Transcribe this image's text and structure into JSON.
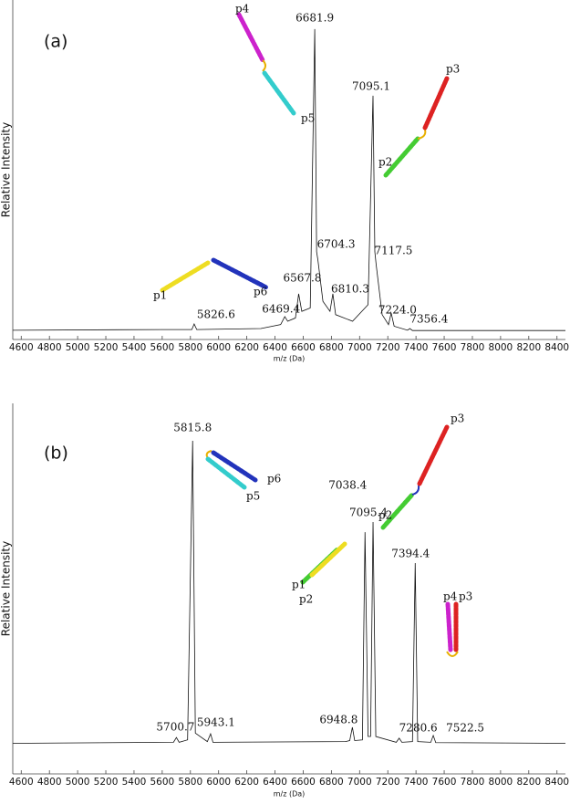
{
  "chart_data": [
    {
      "type": "line",
      "panel_label": "(a)",
      "xlabel": "m/z (Da)",
      "ylabel": "Relative Intensity",
      "color": "#111111",
      "xlim": [
        4540,
        8460
      ],
      "ylim": [
        -2.5,
        100
      ],
      "xticks": [
        4600,
        4800,
        5000,
        5200,
        5400,
        5600,
        5800,
        6000,
        6200,
        6400,
        6600,
        6800,
        7000,
        7200,
        7400,
        7600,
        7800,
        8000,
        8200,
        8400
      ],
      "x": [
        4540,
        5600,
        5810,
        5826.6,
        5845,
        6300,
        6440,
        6469.4,
        6490,
        6545,
        6567.8,
        6590,
        6650,
        6681.9,
        6695,
        6704.3,
        6740,
        6790,
        6810.3,
        6830,
        6950,
        7060,
        7095.1,
        7108,
        7117.5,
        7160,
        7205,
        7224.0,
        7245,
        7340,
        7356.4,
        7375,
        8460
      ],
      "values": [
        0.3,
        0.5,
        0.5,
        2.2,
        0.5,
        0.8,
        2,
        4.4,
        3,
        4,
        11.3,
        6,
        7,
        91.2,
        24,
        21.5,
        9,
        6,
        11.3,
        5,
        3,
        8,
        71.1,
        24,
        20.1,
        5,
        2,
        5.5,
        1.5,
        0.3,
        0.8,
        0.2,
        0.2
      ],
      "peak_labels": [
        null,
        null,
        null,
        "5826.6",
        null,
        null,
        null,
        "6469.4",
        null,
        null,
        "6567.8",
        null,
        null,
        "6681.9",
        null,
        "6704.3",
        null,
        null,
        "6810.3",
        null,
        null,
        null,
        "7095.1",
        null,
        "7117.5",
        null,
        null,
        "7224.0",
        null,
        null,
        "7356.4",
        null,
        null
      ],
      "structure_labels": [
        "p4",
        "p5",
        "p3",
        "p2",
        "p1",
        "p6"
      ]
    },
    {
      "type": "line",
      "panel_label": "(b)",
      "xlabel": "m/z (Da)",
      "ylabel": "Relative Intensity",
      "color": "#111111",
      "xlim": [
        4540,
        8460
      ],
      "ylim": [
        -9,
        100
      ],
      "xticks": [
        4600,
        4800,
        5000,
        5200,
        5400,
        5600,
        5800,
        6000,
        6200,
        6400,
        6600,
        6800,
        7000,
        7200,
        7400,
        7600,
        7800,
        8000,
        8200,
        8400
      ],
      "x": [
        4540,
        5680,
        5700.7,
        5720,
        5780,
        5815.8,
        5835,
        5920,
        5943.1,
        5960,
        6900,
        6930,
        6948.8,
        6965,
        7020,
        7038.4,
        7060,
        7078,
        7095.4,
        7115,
        7260,
        7280.6,
        7300,
        7375,
        7394.4,
        7412,
        7505,
        7522.5,
        7540,
        8460
      ],
      "values": [
        0,
        0.3,
        1.7,
        0.3,
        1,
        89,
        3,
        0.5,
        2.8,
        0.3,
        0.5,
        0.8,
        4.7,
        0.8,
        1,
        62.1,
        2,
        2,
        65.1,
        2,
        0.3,
        1.5,
        0.3,
        0.5,
        53,
        0.5,
        0.3,
        2.3,
        0.2,
        0
      ],
      "peak_labels": [
        null,
        null,
        "5700.7",
        null,
        null,
        "5815.8",
        null,
        null,
        "5943.1",
        null,
        null,
        null,
        "6948.8",
        null,
        null,
        "7038.4",
        null,
        null,
        "7095.4",
        null,
        null,
        "7280.6",
        null,
        null,
        "7394.4",
        null,
        null,
        "7522.5",
        null,
        null
      ],
      "structure_labels": [
        "p3",
        "p6",
        "p5",
        "p2",
        "p1",
        "p2",
        "p4",
        "p3"
      ]
    }
  ]
}
